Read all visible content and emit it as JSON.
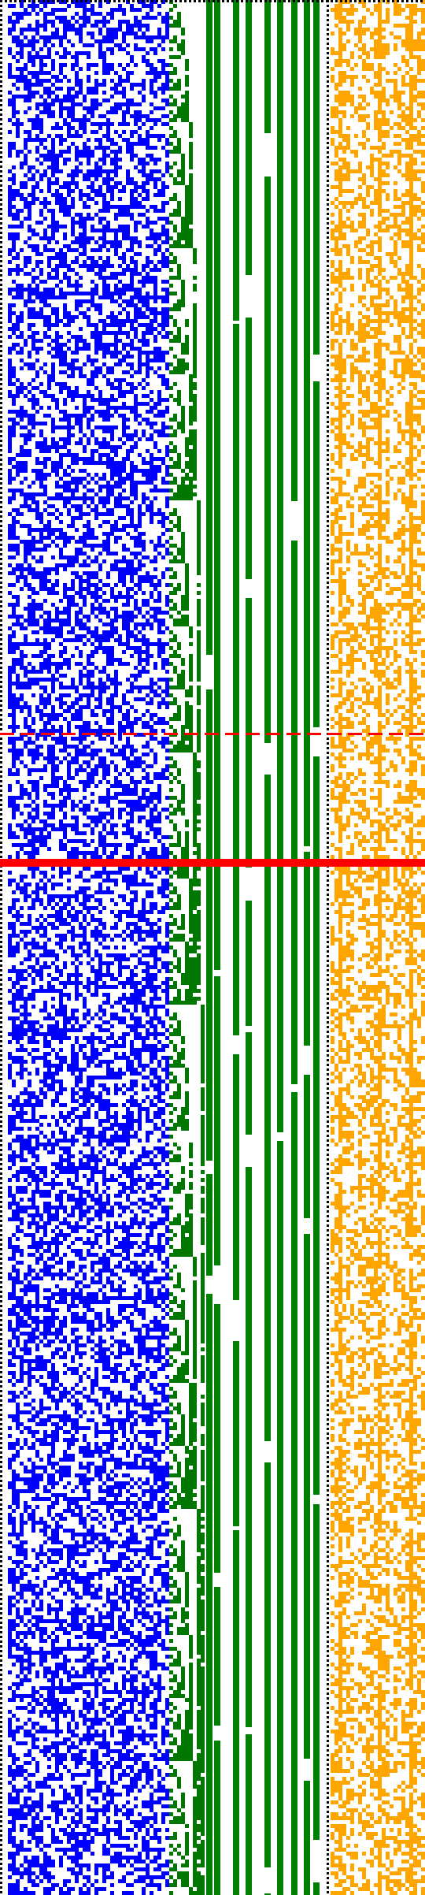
{
  "visualization": {
    "kind": "binary-cell-raster",
    "description_hidden": true,
    "colors": {
      "background": "#ffffff",
      "bits_left": "#0000ff",
      "counter_diagonal": "#007700",
      "counter_bars": "#008000",
      "bits_right": "#ffa500",
      "marker_line": "#ff0000",
      "border_dots": "#000000"
    },
    "panels": [
      {
        "name": "left-bit-grid",
        "color_key": "bits_left",
        "density": 0.5
      },
      {
        "name": "binary-counter-stairs",
        "color_key": "counter_diagonal"
      },
      {
        "name": "counter-bars",
        "color_key": "counter_bars"
      },
      {
        "name": "right-bit-grid",
        "color_key": "bits_right",
        "density": 0.42
      }
    ],
    "markers": [
      {
        "name": "marker-dashed",
        "style": "dashed"
      },
      {
        "name": "marker-solid",
        "style": "solid"
      }
    ]
  }
}
